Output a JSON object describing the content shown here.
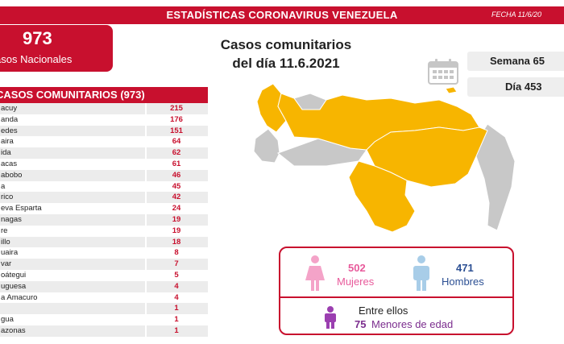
{
  "header": {
    "title": "ESTADÍSTICAS CORONAVIRUS VENEZUELA",
    "date": "FECHA 11/6/20"
  },
  "national": {
    "count": "973",
    "label": "asos Nacionales"
  },
  "main_title": {
    "line1": "Casos comunitarios",
    "line2": "del día 11.6.2021"
  },
  "week": {
    "label": "Semana 65"
  },
  "day": {
    "label": "Día 453"
  },
  "table": {
    "header": "CASOS COMUNITARIOS (973)",
    "rows": [
      {
        "name": "acuy",
        "value": "215"
      },
      {
        "name": "anda",
        "value": "176"
      },
      {
        "name": "edes",
        "value": "151"
      },
      {
        "name": "aira",
        "value": "64"
      },
      {
        "name": "ida",
        "value": "62"
      },
      {
        "name": "acas",
        "value": "61"
      },
      {
        "name": "abobo",
        "value": "46"
      },
      {
        "name": "a",
        "value": "45"
      },
      {
        "name": "rico",
        "value": "42"
      },
      {
        "name": "eva Esparta",
        "value": "24"
      },
      {
        "name": "nagas",
        "value": "19"
      },
      {
        "name": "re",
        "value": "19"
      },
      {
        "name": "illo",
        "value": "18"
      },
      {
        "name": "uaira",
        "value": "8"
      },
      {
        "name": "var",
        "value": "7"
      },
      {
        "name": "oátegui",
        "value": "5"
      },
      {
        "name": "uguesa",
        "value": "4"
      },
      {
        "name": "a Amacuro",
        "value": "4"
      },
      {
        "name": "",
        "value": "1"
      },
      {
        "name": "gua",
        "value": "1"
      },
      {
        "name": "azonas",
        "value": "1"
      }
    ]
  },
  "gender": {
    "women_count": "502",
    "women_label": "Mujeres",
    "men_count": "471",
    "men_label": "Hombres",
    "minors_intro": "Entre ellos",
    "minors_count": "75",
    "minors_label": "Menores de edad"
  },
  "colors": {
    "brand_red": "#c8102e",
    "map_highlight": "#f7b500",
    "map_gray": "#c8c8c8",
    "women": "#e85a9b",
    "men": "#2b4f93",
    "minors": "#7b2d8e"
  },
  "icons": [
    "calendar-icon",
    "woman-icon",
    "man-icon",
    "child-icon"
  ]
}
